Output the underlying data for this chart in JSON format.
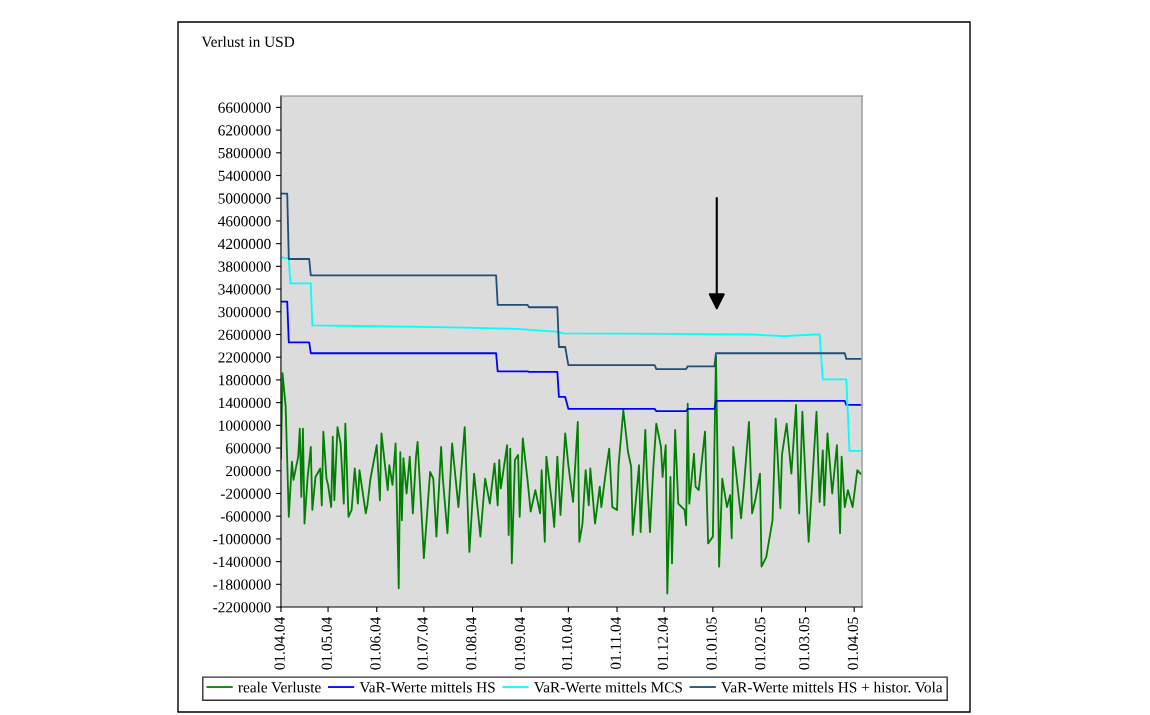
{
  "chart_data": {
    "type": "line",
    "ylabel": "Verlust in USD",
    "xlim": [
      "2004-04-01",
      "2005-04-06"
    ],
    "xticks": [
      {
        "value": "2004-04-01",
        "label": "01.04.04"
      },
      {
        "value": "2004-05-01",
        "label": "01.05.04"
      },
      {
        "value": "2004-06-01",
        "label": "01.06.04"
      },
      {
        "value": "2004-07-01",
        "label": "01.07.04"
      },
      {
        "value": "2004-08-01",
        "label": "01.08.04"
      },
      {
        "value": "2004-09-01",
        "label": "01.09.04"
      },
      {
        "value": "2004-10-01",
        "label": "01.10.04"
      },
      {
        "value": "2004-11-01",
        "label": "01.11.04"
      },
      {
        "value": "2004-12-01",
        "label": "01.12.04"
      },
      {
        "value": "2005-01-01",
        "label": "01.01.05"
      },
      {
        "value": "2005-02-01",
        "label": "01.02.05"
      },
      {
        "value": "2005-03-01",
        "label": "01.03.05"
      },
      {
        "value": "2005-04-01",
        "label": "01.04.05"
      }
    ],
    "ylim": [
      -2200000,
      6800000
    ],
    "yticks": [
      -2200000,
      -1800000,
      -1400000,
      -1000000,
      -600000,
      -200000,
      200000,
      600000,
      1000000,
      1400000,
      1800000,
      2200000,
      2600000,
      3000000,
      3400000,
      3800000,
      4200000,
      4600000,
      5000000,
      5400000,
      5800000,
      6200000,
      6600000
    ],
    "grid": false,
    "legend": "bottom",
    "marker": "none",
    "line_style": "solid",
    "series": [
      {
        "name": "reale Verluste",
        "color": "#008000",
        "x": [
          "2004-04-01",
          "2004-04-02",
          "2004-04-04",
          "2004-04-06",
          "2004-04-08",
          "2004-04-09",
          "2004-04-12",
          "2004-04-13",
          "2004-04-14",
          "2004-04-15",
          "2004-04-16",
          "2004-04-18",
          "2004-04-20",
          "2004-04-21",
          "2004-04-23",
          "2004-04-26",
          "2004-04-27",
          "2004-04-28",
          "2004-04-30",
          "2004-05-01",
          "2004-05-03",
          "2004-05-04",
          "2004-05-05",
          "2004-05-07",
          "2004-05-09",
          "2004-05-11",
          "2004-05-12",
          "2004-05-14",
          "2004-05-16",
          "2004-05-18",
          "2004-05-20",
          "2004-05-21",
          "2004-05-25",
          "2004-05-26",
          "2004-05-28",
          "2004-06-01",
          "2004-06-03",
          "2004-06-04",
          "2004-06-08",
          "2004-06-09",
          "2004-06-11",
          "2004-06-13",
          "2004-06-15",
          "2004-06-16",
          "2004-06-17",
          "2004-06-18",
          "2004-06-20",
          "2004-06-22",
          "2004-06-24",
          "2004-06-26",
          "2004-06-27",
          "2004-06-30",
          "2004-07-01",
          "2004-07-05",
          "2004-07-07",
          "2004-07-09",
          "2004-07-12",
          "2004-07-13",
          "2004-07-16",
          "2004-07-19",
          "2004-07-23",
          "2004-07-27",
          "2004-07-30",
          "2004-08-02",
          "2004-08-06",
          "2004-08-09",
          "2004-08-12",
          "2004-08-15",
          "2004-08-17",
          "2004-08-18",
          "2004-08-19",
          "2004-08-23",
          "2004-08-24",
          "2004-08-25",
          "2004-08-26",
          "2004-08-28",
          "2004-08-30",
          "2004-08-31",
          "2004-09-02",
          "2004-09-05",
          "2004-09-07",
          "2004-09-10",
          "2004-09-13",
          "2004-09-14",
          "2004-09-16",
          "2004-09-17",
          "2004-09-21",
          "2004-09-22",
          "2004-09-24",
          "2004-09-26",
          "2004-09-29",
          "2004-10-01",
          "2004-10-04",
          "2004-10-07",
          "2004-10-08",
          "2004-10-10",
          "2004-10-12",
          "2004-10-14",
          "2004-10-15",
          "2004-10-18",
          "2004-10-21",
          "2004-10-22",
          "2004-10-25",
          "2004-10-27",
          "2004-10-29",
          "2004-11-01",
          "2004-11-02",
          "2004-11-05",
          "2004-11-08",
          "2004-11-10",
          "2004-11-11",
          "2004-11-15",
          "2004-11-16",
          "2004-11-19",
          "2004-11-20",
          "2004-11-22",
          "2004-11-24",
          "2004-11-26",
          "2004-11-29",
          "2004-11-30",
          "2004-12-02",
          "2004-12-03",
          "2004-12-05",
          "2004-12-06",
          "2004-12-08",
          "2004-12-10",
          "2004-12-14",
          "2004-12-15",
          "2004-12-16",
          "2004-12-17",
          "2004-12-20",
          "2004-12-21",
          "2004-12-23",
          "2004-12-27",
          "2004-12-29",
          "2005-01-01",
          "2005-01-03",
          "2005-01-05",
          "2005-01-07",
          "2005-01-10",
          "2005-01-12",
          "2005-01-13",
          "2005-01-14",
          "2005-01-19",
          "2005-01-21",
          "2005-01-24",
          "2005-01-26",
          "2005-01-28",
          "2005-01-31",
          "2005-02-01",
          "2005-02-04",
          "2005-02-08",
          "2005-02-10",
          "2005-02-13",
          "2005-02-14",
          "2005-02-17",
          "2005-02-20",
          "2005-02-23",
          "2005-02-25",
          "2005-02-27",
          "2005-03-01",
          "2005-03-03",
          "2005-03-08",
          "2005-03-10",
          "2005-03-12",
          "2005-03-13",
          "2005-03-15",
          "2005-03-18",
          "2005-03-21",
          "2005-03-23",
          "2005-03-24",
          "2005-03-26",
          "2005-03-28",
          "2005-03-31",
          "2005-04-03",
          "2005-04-05"
        ],
        "values": [
          420000,
          1920000,
          1330000,
          -610000,
          360000,
          40000,
          450000,
          940000,
          -260000,
          940000,
          -730000,
          90000,
          620000,
          -490000,
          90000,
          240000,
          -410000,
          890000,
          60000,
          -50000,
          -440000,
          800000,
          -320000,
          970000,
          680000,
          -380000,
          1030000,
          -610000,
          -490000,
          240000,
          -380000,
          210000,
          -550000,
          -410000,
          60000,
          650000,
          -320000,
          860000,
          -140000,
          300000,
          -50000,
          680000,
          -1870000,
          530000,
          -670000,
          420000,
          -200000,
          450000,
          -550000,
          450000,
          710000,
          -790000,
          -1340000,
          180000,
          60000,
          -960000,
          620000,
          90000,
          -900000,
          680000,
          -440000,
          970000,
          -1230000,
          150000,
          -960000,
          60000,
          -380000,
          330000,
          -410000,
          390000,
          -110000,
          650000,
          -930000,
          590000,
          -1430000,
          390000,
          480000,
          -610000,
          770000,
          40000,
          -520000,
          -140000,
          -550000,
          210000,
          -1050000,
          450000,
          -490000,
          -790000,
          450000,
          -580000,
          860000,
          300000,
          -350000,
          1060000,
          -1050000,
          -730000,
          210000,
          -410000,
          240000,
          -730000,
          -80000,
          -440000,
          210000,
          590000,
          -440000,
          -490000,
          300000,
          1270000,
          530000,
          270000,
          -930000,
          300000,
          -880000,
          920000,
          150000,
          -880000,
          210000,
          1030000,
          620000,
          90000,
          650000,
          -1960000,
          90000,
          -1430000,
          920000,
          -380000,
          -490000,
          -760000,
          1380000,
          -380000,
          500000,
          -80000,
          -140000,
          890000,
          -1080000,
          -960000,
          2210000,
          -1490000,
          60000,
          -440000,
          -230000,
          -990000,
          620000,
          -640000,
          0,
          1060000,
          -550000,
          -320000,
          150000,
          -1490000,
          -1320000,
          -670000,
          1120000,
          -460000,
          480000,
          1030000,
          150000,
          1360000,
          -550000,
          1240000,
          60000,
          -1050000,
          1240000,
          -350000,
          560000,
          -410000,
          860000,
          -200000,
          650000,
          -900000,
          450000,
          -440000,
          -140000,
          -440000,
          210000,
          150000
        ]
      },
      {
        "name": "VaR-Werte mittels HS",
        "color": "#0000ff",
        "x": [
          "2004-04-01",
          "2004-04-05",
          "2004-04-06",
          "2004-04-19",
          "2004-04-20",
          "2004-08-16",
          "2004-08-17",
          "2004-09-05",
          "2004-09-06",
          "2004-09-24",
          "2004-09-25",
          "2004-09-29",
          "2004-10-01",
          "2004-11-25",
          "2004-11-26",
          "2004-12-15",
          "2004-12-16",
          "2005-01-02",
          "2005-01-03",
          "2005-03-26",
          "2005-03-27",
          "2005-04-05"
        ],
        "values": [
          3180000,
          3180000,
          2460000,
          2460000,
          2270000,
          2270000,
          1950000,
          1950000,
          1940000,
          1940000,
          1500000,
          1500000,
          1290000,
          1290000,
          1250000,
          1250000,
          1290000,
          1290000,
          1430000,
          1430000,
          1360000,
          1360000
        ]
      },
      {
        "name": "VaR-Werte mittels MCS",
        "color": "#00ffff",
        "x": [
          "2004-04-01",
          "2004-04-06",
          "2004-04-07",
          "2004-04-20",
          "2004-04-21",
          "2004-05-21",
          "2004-07-10",
          "2004-08-29",
          "2004-09-23",
          "2004-09-28",
          "2004-12-07",
          "2005-01-26",
          "2005-02-15",
          "2005-03-07",
          "2005-03-10",
          "2005-03-12",
          "2005-03-27",
          "2005-03-29",
          "2005-04-05"
        ],
        "values": [
          3960000,
          3940000,
          3500000,
          3500000,
          2760000,
          2750000,
          2730000,
          2700000,
          2650000,
          2620000,
          2610000,
          2600000,
          2570000,
          2600000,
          2600000,
          1810000,
          1810000,
          550000,
          550000
        ]
      },
      {
        "name": "VaR-Werte mittels HS + histor. Vola",
        "color": "#1f4e79",
        "x": [
          "2004-04-01",
          "2004-04-05",
          "2004-04-06",
          "2004-04-19",
          "2004-04-20",
          "2004-08-16",
          "2004-08-17",
          "2004-09-05",
          "2004-09-06",
          "2004-09-24",
          "2004-09-25",
          "2004-09-29",
          "2004-10-01",
          "2004-11-25",
          "2004-11-26",
          "2004-12-15",
          "2004-12-16",
          "2005-01-02",
          "2005-01-03",
          "2005-03-26",
          "2005-03-27",
          "2005-04-05"
        ],
        "values": [
          5080000,
          5080000,
          3930000,
          3930000,
          3640000,
          3640000,
          3120000,
          3120000,
          3080000,
          3080000,
          2380000,
          2380000,
          2060000,
          2060000,
          1990000,
          1990000,
          2040000,
          2040000,
          2270000,
          2270000,
          2170000,
          2170000
        ]
      }
    ]
  }
}
